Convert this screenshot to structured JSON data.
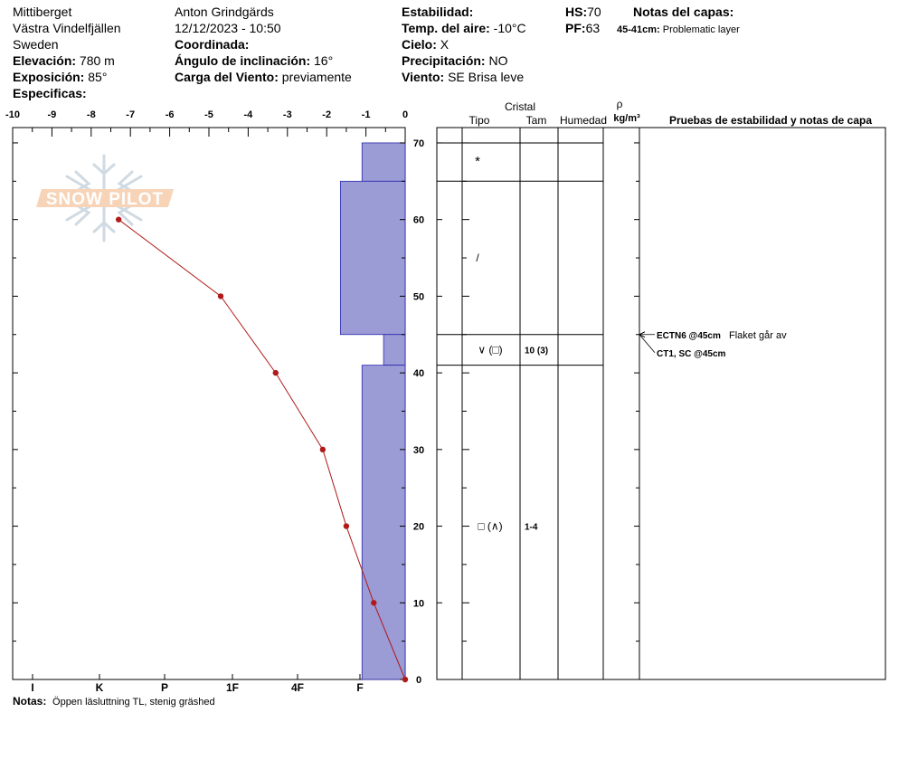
{
  "site": {
    "location": "Mittiberget",
    "region": "Västra Vindelfjällen",
    "country": "Sweden",
    "elevation_label": "Elevación:",
    "elevation_value": "780 m",
    "exposure_label": "Exposición:",
    "exposure_value": "85°",
    "specifics_label": "Especificas:"
  },
  "observer": {
    "name": "Anton Grindgärds",
    "datetime": "12/12/2023 - 10:50",
    "coord_label": "Coordinada:",
    "slope_label": "Ángulo de inclinación:",
    "slope_value": "16°",
    "wind_load_label": "Carga del Viento:",
    "wind_load_value": "previamente"
  },
  "conditions": {
    "stability_label": "Estabilidad:",
    "air_temp_label": "Temp. del aire:",
    "air_temp_value": "-10°C",
    "sky_label": "Cielo:",
    "sky_value": "X",
    "precip_label": "Precipitación:",
    "precip_value": "NO",
    "wind_label": "Viento:",
    "wind_value": "SE  Brisa leve"
  },
  "depths": {
    "hs_label": "HS:",
    "hs_value": "70",
    "pf_label": "PF:",
    "pf_value": "63"
  },
  "layer_notes": {
    "title": "Notas del capas:",
    "range": "45-41cm:",
    "text": "Problematic layer"
  },
  "watermark": "SNOW PILOT",
  "notes": {
    "label": "Notas:",
    "text": "Öppen läsluttning TL, stenig gräshed"
  },
  "table_headers": {
    "crystal": "Cristal",
    "type": "Tipo",
    "size": "Tam",
    "moisture": "Humedad",
    "rho": "ρ",
    "density_unit": "kg/m³",
    "tests": "Pruebas de estabilidad y notas de capa"
  },
  "layer_rows": [
    {
      "top": 70,
      "bottom": 65,
      "grain": "*",
      "size": ""
    },
    {
      "top": 65,
      "bottom": 45,
      "grain": "/",
      "size": ""
    },
    {
      "top": 45,
      "bottom": 41,
      "grain": "∨ (□)",
      "size": "10 (3)"
    },
    {
      "top": 41,
      "bottom": 0,
      "grain": "□ (∧)",
      "size": "1-4"
    }
  ],
  "stability_tests": [
    {
      "depth": 45,
      "code": "ECTN6 @45cm",
      "note": "Flaket går av"
    },
    {
      "depth": 45,
      "code": "CT1, SC @45cm",
      "note": ""
    }
  ],
  "chart_data": {
    "type": "area",
    "temperature_axis": {
      "ticks": [
        "-10",
        "-9",
        "-8",
        "-7",
        "-6",
        "-5",
        "-4",
        "-3",
        "-2",
        "-1",
        "0"
      ],
      "range": [
        -10,
        0
      ]
    },
    "depth_axis": {
      "ticks": [
        "0",
        "10",
        "20",
        "30",
        "40",
        "50",
        "60",
        "70"
      ],
      "range": [
        0,
        70
      ]
    },
    "hardness_axis": {
      "ticks": [
        "I",
        "K",
        "P",
        "1F",
        "4F",
        "F"
      ]
    },
    "hardness_profile": [
      {
        "top": 70,
        "bottom": 65,
        "temp_scale_value": -1.1
      },
      {
        "top": 65,
        "bottom": 45,
        "temp_scale_value": -1.65
      },
      {
        "top": 45,
        "bottom": 41,
        "temp_scale_value": -0.55
      },
      {
        "top": 41,
        "bottom": 0,
        "temp_scale_value": -1.1
      }
    ],
    "temperature_profile": {
      "depth": [
        60,
        50,
        40,
        30,
        20,
        10,
        0
      ],
      "temp": [
        -7.3,
        -4.7,
        -3.3,
        -2.1,
        -1.5,
        -0.8,
        0
      ]
    },
    "colors": {
      "hardness_fill": "#9b9bd6",
      "temp_line": "#b01a1a",
      "temp_marker": "#b01a1a"
    }
  }
}
